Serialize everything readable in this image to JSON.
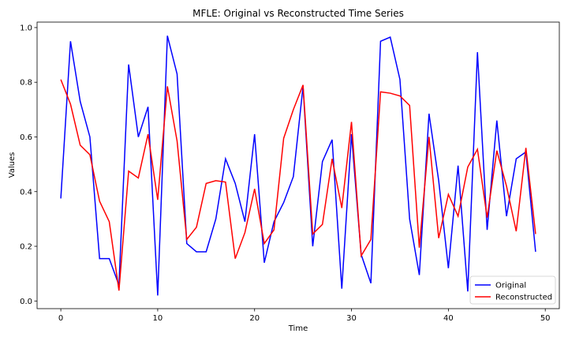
{
  "chart_data": {
    "type": "line",
    "title": "MFLE: Original vs Reconstructed Time Series",
    "xlabel": "Time",
    "ylabel": "Values",
    "xlim": [
      -2.45,
      51.45
    ],
    "ylim": [
      -0.028,
      1.02
    ],
    "xticks": [
      0,
      10,
      20,
      30,
      40,
      50
    ],
    "yticks": [
      0.0,
      0.2,
      0.4,
      0.6,
      0.8,
      1.0
    ],
    "xtick_labels": [
      "0",
      "10",
      "20",
      "30",
      "40",
      "50"
    ],
    "ytick_labels": [
      "0.0",
      "0.2",
      "0.4",
      "0.6",
      "0.8",
      "1.0"
    ],
    "grid": false,
    "legend": {
      "placement": "bottom-right"
    },
    "x": [
      0,
      1,
      2,
      3,
      4,
      5,
      6,
      7,
      8,
      9,
      10,
      11,
      12,
      13,
      14,
      15,
      16,
      17,
      18,
      19,
      20,
      21,
      22,
      23,
      24,
      25,
      26,
      27,
      28,
      29,
      30,
      31,
      32,
      33,
      34,
      35,
      36,
      37,
      38,
      39,
      40,
      41,
      42,
      43,
      44,
      45,
      46,
      47,
      48,
      49
    ],
    "series": [
      {
        "name": "Original",
        "color": "#0000ff",
        "values": [
          0.375,
          0.95,
          0.73,
          0.6,
          0.155,
          0.155,
          0.058,
          0.865,
          0.6,
          0.71,
          0.02,
          0.97,
          0.83,
          0.21,
          0.18,
          0.18,
          0.3,
          0.52,
          0.43,
          0.29,
          0.61,
          0.14,
          0.29,
          0.36,
          0.455,
          0.785,
          0.2,
          0.51,
          0.59,
          0.045,
          0.61,
          0.17,
          0.065,
          0.95,
          0.965,
          0.81,
          0.3,
          0.095,
          0.685,
          0.44,
          0.12,
          0.495,
          0.035,
          0.91,
          0.26,
          0.66,
          0.31,
          0.52,
          0.545,
          0.18
        ]
      },
      {
        "name": "Reconstructed",
        "color": "#ff0000",
        "values": [
          0.81,
          0.72,
          0.57,
          0.535,
          0.365,
          0.29,
          0.038,
          0.475,
          0.45,
          0.61,
          0.37,
          0.785,
          0.585,
          0.225,
          0.27,
          0.43,
          0.44,
          0.435,
          0.155,
          0.25,
          0.41,
          0.21,
          0.26,
          0.595,
          0.7,
          0.79,
          0.245,
          0.28,
          0.52,
          0.34,
          0.655,
          0.165,
          0.225,
          0.765,
          0.76,
          0.75,
          0.715,
          0.195,
          0.6,
          0.23,
          0.39,
          0.31,
          0.49,
          0.555,
          0.305,
          0.55,
          0.42,
          0.255,
          0.56,
          0.245
        ]
      }
    ]
  }
}
